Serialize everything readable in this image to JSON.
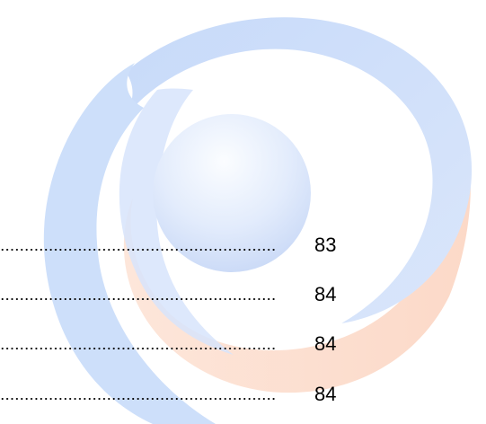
{
  "watermark": {
    "icon": "logo-swirl-watermark",
    "colors": {
      "blue": "#cfe0fb",
      "orange": "#fde0d2",
      "sphere_light": "#fafcff",
      "sphere_dark": "#c6d6f6"
    }
  },
  "toc": {
    "entries": [
      {
        "page": "83"
      },
      {
        "page": "84"
      },
      {
        "page": "84"
      },
      {
        "page": "84"
      }
    ]
  }
}
